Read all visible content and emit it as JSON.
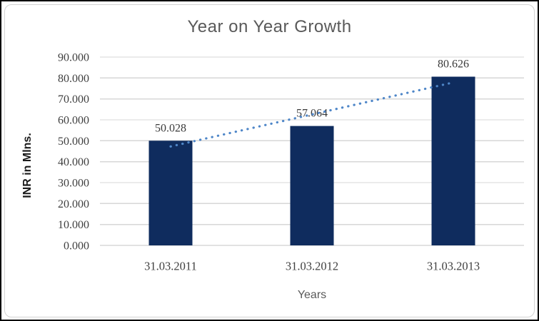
{
  "window": {
    "outer_border_color": "#000000",
    "frame_border_color": "#d3d3d3",
    "background": "#ffffff"
  },
  "chart_data": {
    "type": "bar",
    "title": "Year on Year Growth",
    "xlabel": "Years",
    "ylabel": "INR in Mlns.",
    "categories": [
      "31.03.2011",
      "31.03.2012",
      "31.03.2013"
    ],
    "values": [
      50.028,
      57.064,
      80.626
    ],
    "value_labels": [
      "50.028",
      "57.064",
      "80.626"
    ],
    "ylim": [
      0,
      90
    ],
    "ytick_step": 10,
    "ytick_labels": [
      "0.000",
      "10.000",
      "20.000",
      "30.000",
      "40.000",
      "50.000",
      "60.000",
      "70.000",
      "80.000",
      "90.000"
    ],
    "grid": true,
    "legend": "none",
    "trendline": {
      "type": "linear",
      "style": "dotted"
    },
    "colors": {
      "bar": "#0f2c5e",
      "trendline": "#4e86c8",
      "title": "#595959",
      "x_axis_title": "#595959",
      "y_axis_title": "#1a1a1a",
      "tick_label": "#404040",
      "category_label": "#404040",
      "data_label": "#3a3a3a",
      "gridline": "#d7d7d7",
      "axis_line": "#c4c4c4"
    }
  }
}
